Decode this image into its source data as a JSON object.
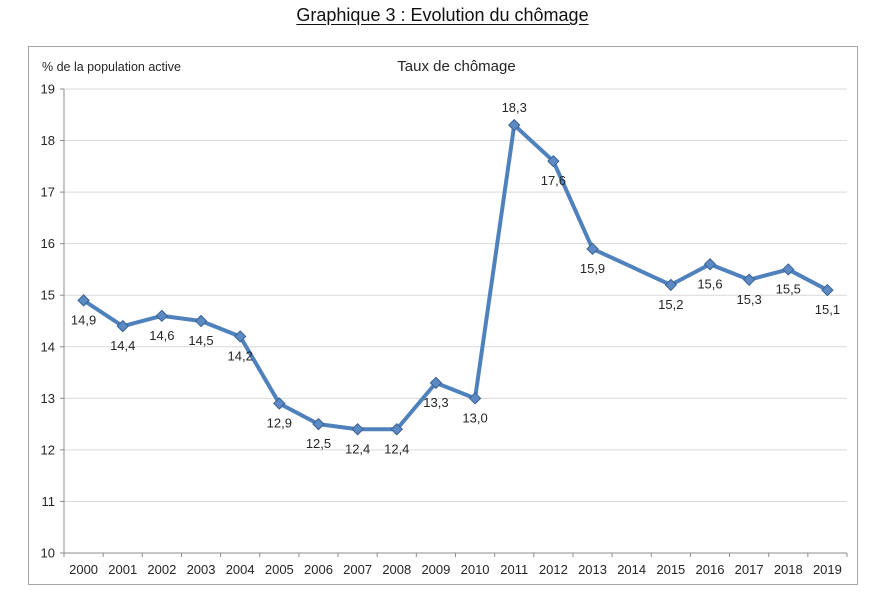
{
  "page_title": "Graphique 3 : Evolution du chômage",
  "chart_data": {
    "type": "line",
    "title": "Taux de chômage",
    "ylabel": "% de la population active",
    "xlabel": "",
    "categories": [
      "2000",
      "2001",
      "2002",
      "2003",
      "2004",
      "2005",
      "2006",
      "2007",
      "2008",
      "2009",
      "2010",
      "2011",
      "2012",
      "2013",
      "2014",
      "2015",
      "2016",
      "2017",
      "2018",
      "2019"
    ],
    "series": [
      {
        "name": "Taux de chômage",
        "values": [
          14.9,
          14.4,
          14.6,
          14.5,
          14.2,
          12.9,
          12.5,
          12.4,
          12.4,
          13.3,
          13.0,
          18.3,
          17.6,
          15.9,
          null,
          15.2,
          15.6,
          15.3,
          15.5,
          15.1
        ],
        "point_labels": [
          "14,9",
          "14,4",
          "14,6",
          "14,5",
          "14,2",
          "12,9",
          "12,5",
          "12,4",
          "12,4",
          "13,3",
          "13,0",
          "18,3",
          "17,6",
          "15,9",
          null,
          "15,2",
          "15,6",
          "15,3",
          "15,5",
          "15,1"
        ],
        "label_position_above": [
          false,
          false,
          false,
          false,
          false,
          false,
          false,
          false,
          false,
          false,
          false,
          true,
          false,
          false,
          false,
          false,
          false,
          false,
          false,
          false
        ]
      }
    ],
    "ylim": [
      10,
      19
    ],
    "yticks": [
      10,
      11,
      12,
      13,
      14,
      15,
      16,
      17,
      18,
      19
    ],
    "grid": true,
    "legend_position": "none",
    "colors": {
      "line": "#4F81BD",
      "marker_fill": "#5B8AC4",
      "marker_stroke": "#3A6191",
      "data_label": "#4E81BC",
      "grid": "#D9D9D9",
      "axis": "#8C8C8C",
      "tick_text": "#262626",
      "border": "#A6A6A6"
    }
  }
}
